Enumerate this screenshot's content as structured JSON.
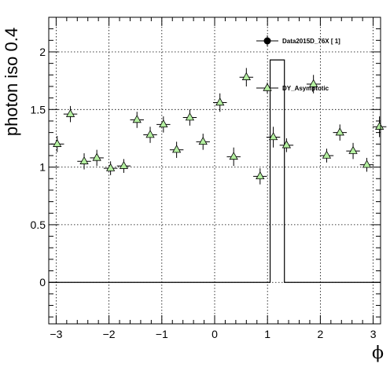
{
  "chart_data": {
    "type": "scatter",
    "xlabel": "ϕ",
    "ylabel": "photon iso 0.4",
    "xlim": [
      -3.14,
      3.14
    ],
    "ylim": [
      -0.36,
      2.3
    ],
    "x_ticks": [
      -3,
      -2,
      -1,
      0,
      1,
      2,
      3
    ],
    "x_tick_labels": [
      "−3",
      "−2",
      "−1",
      "0",
      "1",
      "2",
      "3"
    ],
    "y_ticks": [
      0,
      0.5,
      1,
      1.5,
      2
    ],
    "y_tick_labels": [
      "0",
      "0.5",
      "1",
      "1.5",
      "2"
    ],
    "grid": true,
    "legend_position": "top-right",
    "series": [
      {
        "name": "Data2015D_76X [        1]",
        "marker": "filled-circle",
        "color": "#000000",
        "x": [],
        "y": []
      },
      {
        "name": "DY_Asymptotic",
        "marker": "open-triangle",
        "color": "#b4f0a0",
        "x_bin_halfwidth": 0.13,
        "x": [
          -2.98,
          -2.73,
          -2.47,
          -2.23,
          -1.97,
          -1.72,
          -1.47,
          -1.22,
          -0.97,
          -0.72,
          -0.47,
          -0.22,
          0.1,
          0.36,
          0.6,
          0.86,
          1.11,
          1.36,
          1.87,
          2.12,
          2.37,
          2.62,
          2.88,
          3.12
        ],
        "y": [
          1.2,
          1.46,
          1.05,
          1.08,
          0.99,
          1.01,
          1.41,
          1.28,
          1.37,
          1.15,
          1.43,
          1.22,
          1.56,
          1.09,
          1.78,
          0.92,
          1.26,
          1.19,
          1.72,
          1.1,
          1.3,
          1.14,
          1.02,
          1.35
        ],
        "y_err": [
          0.07,
          0.07,
          0.07,
          0.07,
          0.06,
          0.06,
          0.07,
          0.07,
          0.07,
          0.07,
          0.07,
          0.07,
          0.08,
          0.08,
          0.08,
          0.07,
          0.09,
          0.06,
          0.08,
          0.06,
          0.07,
          0.07,
          0.06,
          0.09
        ]
      }
    ],
    "histogram": {
      "name": "Data2015D_76X [        1]",
      "bin_edges": [
        -3.14,
        1.05,
        1.32,
        3.14
      ],
      "values": [
        0,
        1.93,
        0
      ]
    }
  }
}
